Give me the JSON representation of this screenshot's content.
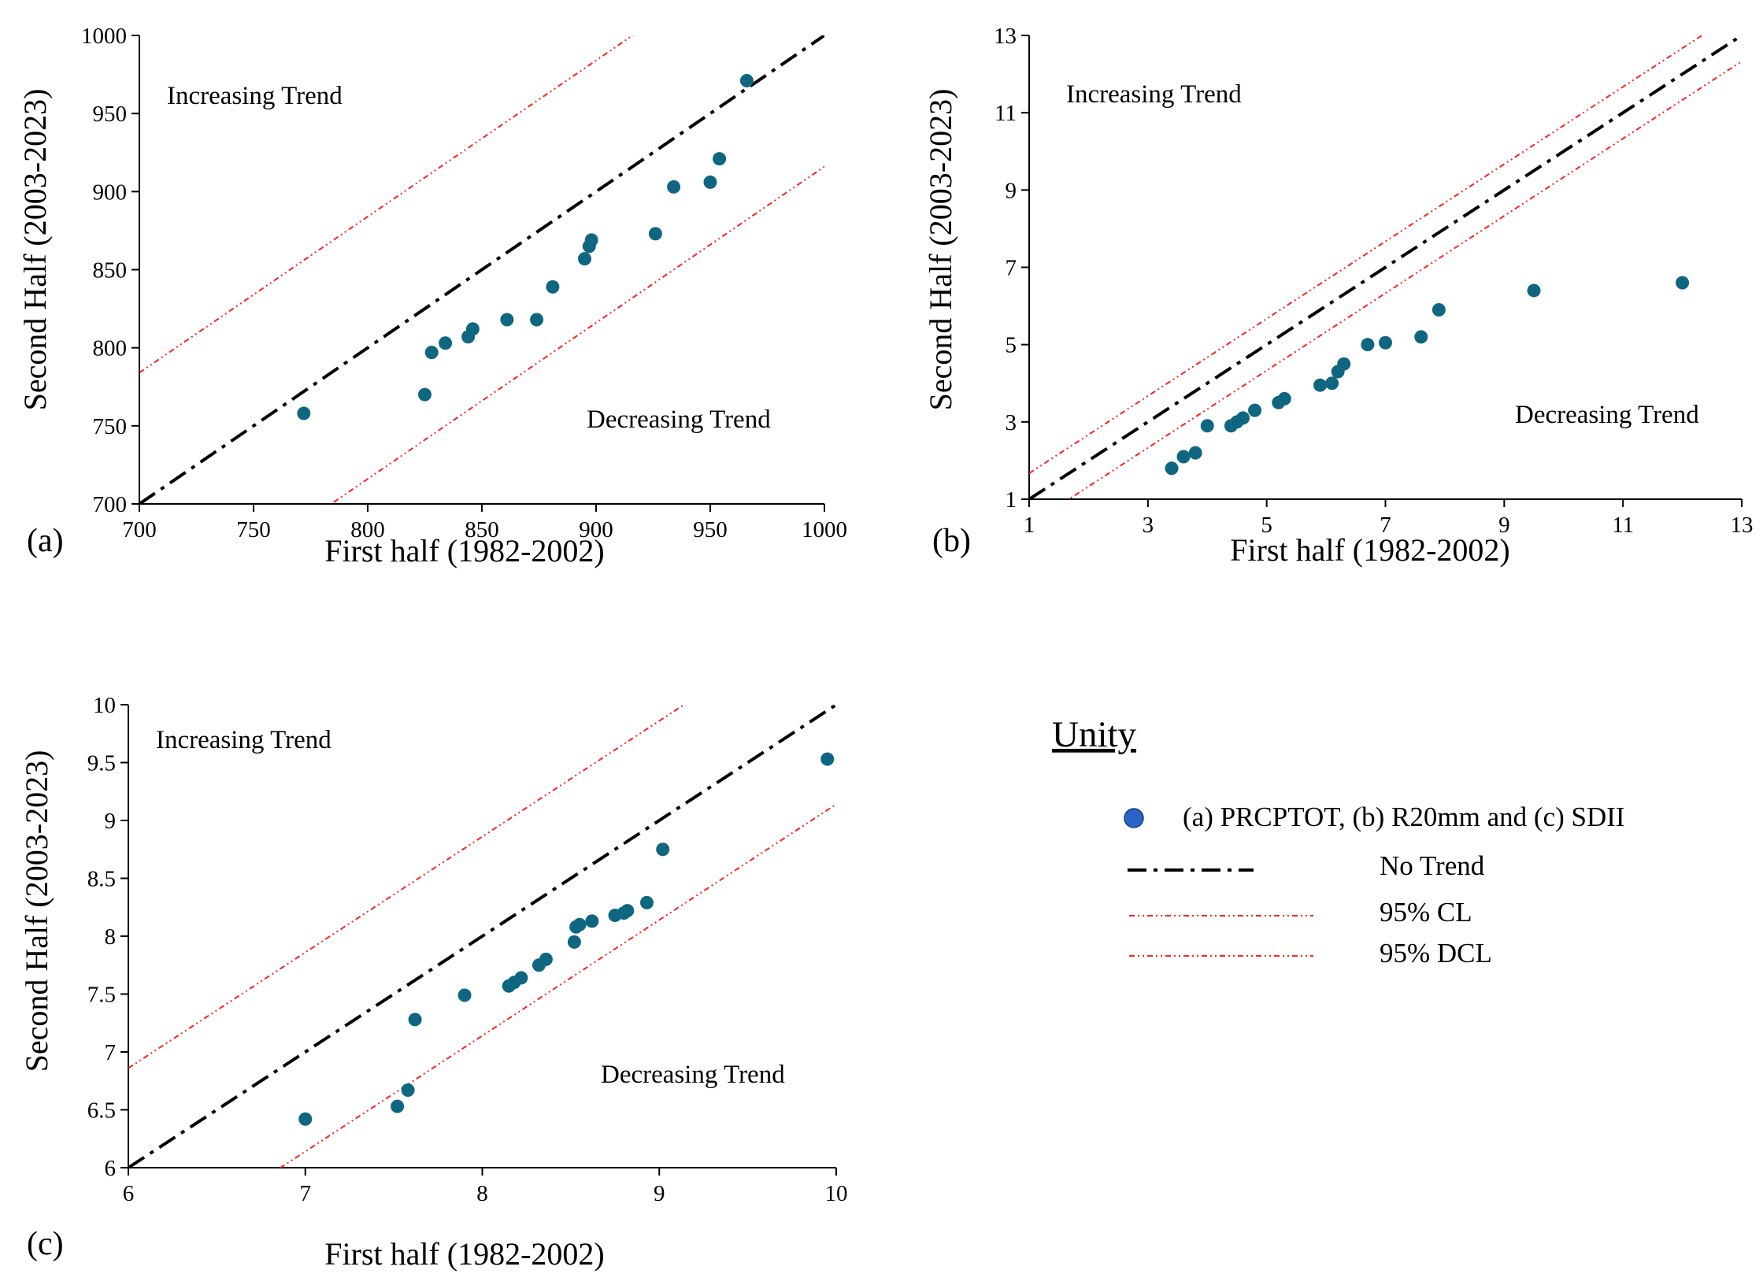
{
  "legend": {
    "title": "Unity",
    "entries": [
      {
        "label": "(a) PRCPTOT, (b) R20mm and (c) SDII",
        "kind": "marker"
      },
      {
        "label": "No Trend",
        "kind": "no-trend"
      },
      {
        "label": "95% CL",
        "kind": "ci"
      },
      {
        "label": "95% DCL",
        "kind": "ci"
      }
    ]
  },
  "colors": {
    "marker": "#0f6680",
    "legend_marker": "#2a64c6",
    "no_trend": "#000000",
    "confidence": "#ff2020"
  },
  "chart_data": [
    {
      "type": "scatter",
      "id": "a",
      "panel_label": "(a)",
      "xlabel": "First half (1982-2002)",
      "ylabel": "Second Half (2003-2023)",
      "xlim": [
        700,
        1000
      ],
      "ylim": [
        700,
        1000
      ],
      "xticks": [
        700,
        750,
        800,
        850,
        900,
        950,
        1000
      ],
      "yticks": [
        700,
        750,
        800,
        850,
        900,
        950,
        1000
      ],
      "annotations": {
        "increasing": "Increasing  Trend",
        "decreasing": "Decreasing  Trend"
      },
      "ci_offset": 84,
      "points": [
        [
          772,
          758
        ],
        [
          825,
          770
        ],
        [
          828,
          797
        ],
        [
          834,
          803
        ],
        [
          844,
          807
        ],
        [
          846,
          812
        ],
        [
          861,
          818
        ],
        [
          874,
          818
        ],
        [
          881,
          839
        ],
        [
          895,
          857
        ],
        [
          897,
          865
        ],
        [
          898,
          869
        ],
        [
          926,
          873
        ],
        [
          934,
          903
        ],
        [
          950,
          906
        ],
        [
          954,
          921
        ],
        [
          966,
          971
        ]
      ]
    },
    {
      "type": "scatter",
      "id": "b",
      "panel_label": "(b)",
      "xlabel": "First half (1982-2002)",
      "ylabel": "Second Half (2003-2023)",
      "xlim": [
        1,
        13
      ],
      "ylim": [
        1,
        13
      ],
      "xticks": [
        1,
        3,
        5,
        7,
        9,
        11,
        13
      ],
      "yticks": [
        1,
        3,
        5,
        7,
        9,
        11,
        13
      ],
      "annotations": {
        "increasing": "Increasing  Trend",
        "decreasing": "Decreasing  Trend"
      },
      "ci_offset": 0.67,
      "points": [
        [
          3.4,
          1.8
        ],
        [
          3.6,
          2.1
        ],
        [
          3.8,
          2.2
        ],
        [
          4.0,
          2.9
        ],
        [
          4.4,
          2.9
        ],
        [
          4.5,
          3.0
        ],
        [
          4.6,
          3.1
        ],
        [
          4.8,
          3.3
        ],
        [
          5.2,
          3.5
        ],
        [
          5.3,
          3.6
        ],
        [
          5.9,
          3.95
        ],
        [
          6.1,
          4.0
        ],
        [
          6.2,
          4.3
        ],
        [
          6.3,
          4.5
        ],
        [
          6.7,
          5.0
        ],
        [
          7.0,
          5.05
        ],
        [
          7.6,
          5.2
        ],
        [
          7.9,
          5.9
        ],
        [
          9.5,
          6.4
        ],
        [
          12.0,
          6.6
        ]
      ]
    },
    {
      "type": "scatter",
      "id": "c",
      "panel_label": "(c)",
      "xlabel": "First half (1982-2002)",
      "ylabel": "Second Half (2003-2023)",
      "xlim": [
        6,
        10
      ],
      "ylim": [
        6,
        10
      ],
      "xticks": [
        6,
        7,
        8,
        9,
        10
      ],
      "yticks": [
        6,
        6.5,
        7,
        7.5,
        8,
        8.5,
        9,
        9.5,
        10
      ],
      "annotations": {
        "increasing": "Increasing  Trend",
        "decreasing": "Decreasing  Trend"
      },
      "ci_offset": 0.86,
      "points": [
        [
          7.0,
          6.42
        ],
        [
          7.52,
          6.53
        ],
        [
          7.58,
          6.67
        ],
        [
          7.62,
          7.28
        ],
        [
          7.9,
          7.49
        ],
        [
          8.15,
          7.57
        ],
        [
          8.18,
          7.6
        ],
        [
          8.22,
          7.64
        ],
        [
          8.32,
          7.75
        ],
        [
          8.36,
          7.8
        ],
        [
          8.52,
          7.95
        ],
        [
          8.53,
          8.08
        ],
        [
          8.55,
          8.1
        ],
        [
          8.62,
          8.13
        ],
        [
          8.75,
          8.18
        ],
        [
          8.8,
          8.2
        ],
        [
          8.82,
          8.22
        ],
        [
          8.93,
          8.29
        ],
        [
          9.02,
          8.75
        ],
        [
          9.95,
          9.53
        ]
      ]
    }
  ]
}
